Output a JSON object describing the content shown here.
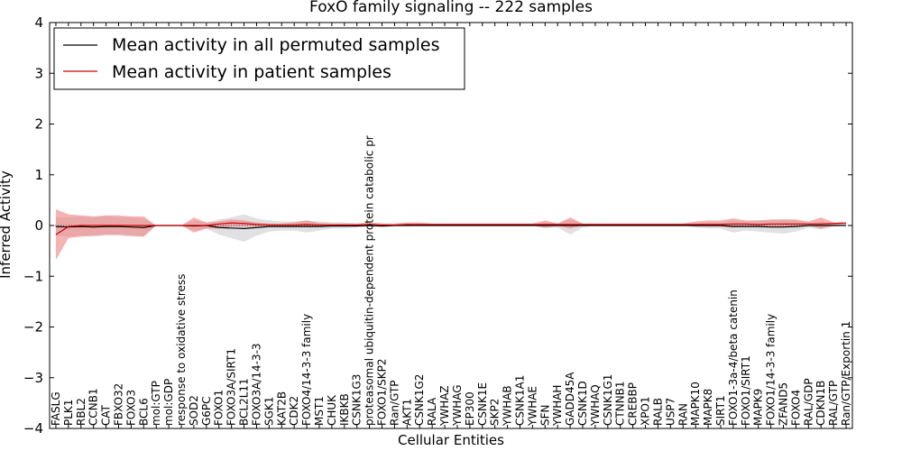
{
  "chart_data": {
    "type": "line",
    "title": "FoxO family signaling -- 222 samples",
    "xlabel": "Cellular Entities",
    "ylabel": "Inferred Activity",
    "ylim": [
      -4,
      4
    ],
    "yticks": [
      "4",
      "3",
      "2",
      "1",
      "0",
      "−1",
      "−2",
      "−3",
      "−4"
    ],
    "grid": false,
    "legend_position": "top-left",
    "colors": {
      "permuted_line": "#000000",
      "patient_line": "#cc0000",
      "permuted_band": "#c8c8cc",
      "patient_band": "#f08080"
    },
    "categories": [
      "FASLG",
      "PLK1",
      "RBL2",
      "CCNB1",
      "CAT",
      "FBXO32",
      "FOXO3",
      "BCL6",
      "mol:GTP",
      "mol:GDP",
      "response to oxidative stress",
      "SOD2",
      "G6PC",
      "FOXO1",
      "FOXO3A/SIRT1",
      "BCL2L11",
      "FOXO3A/14-3-3",
      "SGK1",
      "KAT2B",
      "CDK2",
      "FOXO4/14-3-3 family",
      "MST1",
      "CHUK",
      "IKBKB",
      "CSNK1G3",
      "proteasomal ubiquitin-dependent protein catabolic pr",
      "FOXO1/SKP2",
      "Ran/GTP",
      "AKT1",
      "CSNK1G2",
      "RALA",
      "YWHAZ",
      "YWHAG",
      "EP300",
      "CSNK1E",
      "SKP2",
      "YWHAB",
      "CSNK1A1",
      "YWHAE",
      "SFN",
      "YWHAH",
      "GADD45A",
      "CSNK1D",
      "YWHAQ",
      "CSNK1G1",
      "CTNNB1",
      "CREBBP",
      "XPO1",
      "RALB",
      "USP7",
      "RAN",
      "MAPK10",
      "MAPK8",
      "SIRT1",
      "FOXO1-3a-4/beta catenin",
      "FOXO1/SIRT1",
      "MAPK9",
      "FOXO1/14-3-3 family",
      "ZFAND5",
      "FOXO4",
      "RAL/GDP",
      "CDKN1B",
      "RAL/GTP",
      "Ran/GTP/Exportin 1"
    ],
    "series": [
      {
        "name": "Mean activity in all permuted samples",
        "values": [
          -0.02,
          -0.03,
          -0.02,
          -0.03,
          -0.02,
          -0.02,
          -0.03,
          -0.04,
          0,
          0,
          0,
          -0.01,
          0,
          -0.04,
          -0.05,
          -0.06,
          -0.04,
          -0.02,
          -0.02,
          -0.02,
          -0.02,
          -0.02,
          -0.01,
          -0.01,
          -0.01,
          0,
          -0.01,
          0,
          0,
          0,
          0,
          0,
          0,
          0,
          0,
          0,
          0,
          0,
          0,
          0,
          0,
          0,
          0,
          0,
          0,
          0,
          0,
          0,
          0,
          0,
          0,
          0,
          0,
          0,
          -0.02,
          -0.02,
          -0.02,
          -0.03,
          -0.03,
          -0.02,
          0,
          0,
          0,
          0
        ],
        "lower": [
          -0.2,
          -0.22,
          -0.2,
          -0.22,
          -0.2,
          -0.2,
          -0.22,
          -0.22,
          0,
          0,
          0,
          -0.1,
          -0.06,
          -0.18,
          -0.25,
          -0.32,
          -0.2,
          -0.12,
          -0.1,
          -0.1,
          -0.14,
          -0.1,
          -0.06,
          -0.06,
          -0.04,
          -0.02,
          -0.04,
          -0.02,
          -0.02,
          0,
          0,
          0,
          0,
          0,
          0,
          0,
          0,
          0,
          0,
          -0.06,
          -0.04,
          -0.18,
          -0.04,
          0,
          0,
          0,
          0,
          0,
          0,
          0,
          0,
          -0.04,
          -0.06,
          -0.06,
          -0.14,
          -0.1,
          -0.12,
          -0.14,
          -0.16,
          -0.12,
          -0.04,
          -0.08,
          -0.02,
          0
        ],
        "upper": [
          0.16,
          0.16,
          0.18,
          0.16,
          0.18,
          0.16,
          0.16,
          0.14,
          0,
          0,
          0,
          0.1,
          0.06,
          0.12,
          0.16,
          0.22,
          0.14,
          0.1,
          0.08,
          0.08,
          0.1,
          0.08,
          0.06,
          0.06,
          0.04,
          0.02,
          0.04,
          0.02,
          0.02,
          0,
          0,
          0,
          0,
          0,
          0,
          0,
          0,
          0,
          0,
          0.06,
          0.04,
          0.12,
          0.04,
          0,
          0,
          0,
          0,
          0,
          0,
          0,
          0,
          0.04,
          0.06,
          0.06,
          0.1,
          0.08,
          0.1,
          0.1,
          0.12,
          0.1,
          0.04,
          0.08,
          0.02,
          0
        ]
      },
      {
        "name": "Mean activity in patient samples",
        "values": [
          -0.18,
          -0.02,
          0,
          0,
          0,
          0,
          0,
          0,
          0,
          0,
          0,
          0,
          0,
          0.03,
          0.05,
          0.04,
          0.02,
          0.01,
          0.01,
          0.01,
          0.02,
          0.01,
          0.01,
          0.01,
          0.01,
          0.02,
          0.01,
          0.01,
          0.02,
          0.02,
          0.02,
          0.02,
          0.02,
          0.02,
          0.02,
          0.02,
          0.02,
          0.02,
          0.02,
          0.02,
          0.02,
          0.02,
          0.02,
          0.02,
          0.02,
          0.02,
          0.02,
          0.02,
          0.02,
          0.02,
          0.02,
          0.02,
          0.02,
          0.02,
          0.03,
          0.03,
          0.02,
          0.03,
          0.03,
          0.03,
          0.03,
          0.03,
          0.04,
          0.05
        ],
        "lower": [
          -0.68,
          -0.25,
          -0.22,
          -0.2,
          -0.18,
          -0.18,
          -0.2,
          -0.22,
          0,
          0,
          0,
          -0.14,
          -0.06,
          -0.06,
          -0.02,
          -0.02,
          -0.02,
          -0.01,
          -0.01,
          -0.01,
          -0.03,
          -0.01,
          -0.01,
          -0.01,
          -0.01,
          -0.02,
          -0.01,
          -0.01,
          0,
          0,
          0,
          0,
          0,
          0,
          0,
          0,
          0,
          0,
          0,
          -0.04,
          0,
          -0.06,
          0,
          0,
          0,
          0,
          0,
          0,
          0,
          0,
          0,
          -0.02,
          -0.02,
          -0.02,
          -0.04,
          -0.01,
          -0.02,
          -0.04,
          -0.04,
          -0.02,
          0,
          -0.06,
          0,
          0.02
        ],
        "upper": [
          0.32,
          0.22,
          0.2,
          0.18,
          0.2,
          0.2,
          0.18,
          0.18,
          0,
          0,
          0,
          0.16,
          0.06,
          0.08,
          0.12,
          0.1,
          0.06,
          0.04,
          0.04,
          0.06,
          0.1,
          0.05,
          0.04,
          0.04,
          0.04,
          0.06,
          0.04,
          0.04,
          0.06,
          0.06,
          0.04,
          0.04,
          0.04,
          0.04,
          0.04,
          0.04,
          0.04,
          0.04,
          0.04,
          0.1,
          0.04,
          0.16,
          0.04,
          0.04,
          0.04,
          0.04,
          0.04,
          0.04,
          0.04,
          0.04,
          0.04,
          0.08,
          0.1,
          0.1,
          0.14,
          0.1,
          0.1,
          0.12,
          0.12,
          0.12,
          0.08,
          0.16,
          0.06,
          0.06
        ]
      }
    ]
  }
}
